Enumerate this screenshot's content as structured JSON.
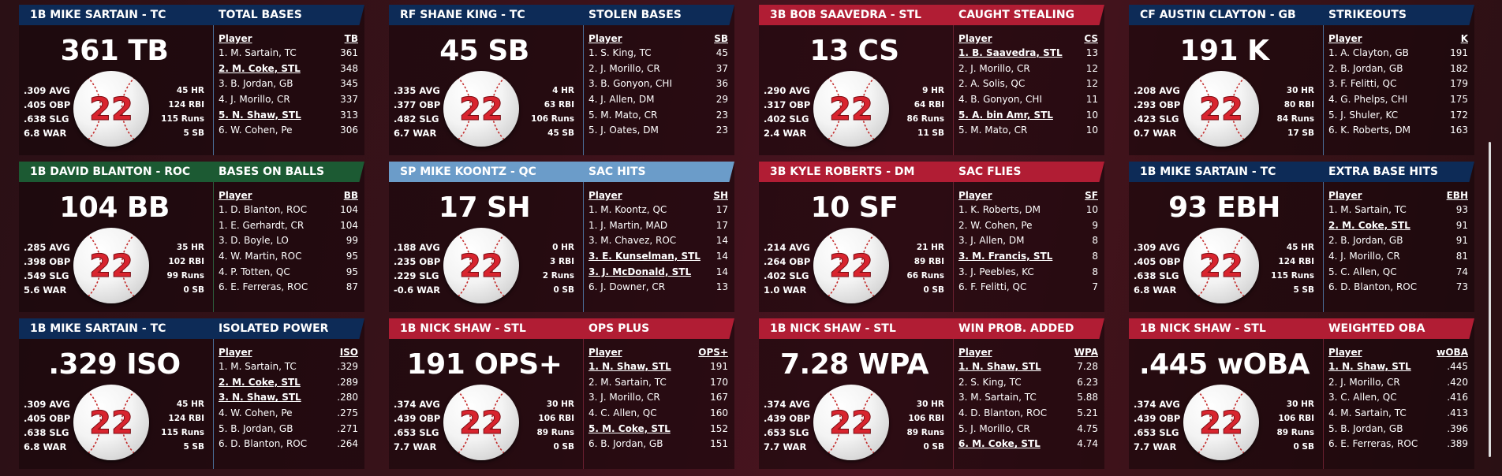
{
  "colors": {
    "navy": "#0d2b57",
    "red": "#b11d34",
    "green": "#1c5a33",
    "lightblue": "#6b9cc9"
  },
  "ball_icon": "baseball-icon",
  "cards": [
    {
      "player": "1B MIKE SARTAIN - TC",
      "stat": "TOTAL BASES",
      "big": "361 TB",
      "color": "navy",
      "left": [
        "309 AVG",
        ".405 OBP",
        ".638 SLG",
        "6.8 WAR"
      ],
      "right": [
        "45 HR",
        "124 RBI",
        "115 Runs",
        "5 SB"
      ],
      "number": "22",
      "col_player": "Player",
      "col_stat": "TB",
      "rows": [
        {
          "n": "1. M. Sartain, TC",
          "v": "361",
          "hl": false
        },
        {
          "n": "2. M. Coke, STL",
          "v": "348",
          "hl": true
        },
        {
          "n": "3. B. Jordan, GB",
          "v": "345",
          "hl": false
        },
        {
          "n": "4. J. Morillo, CR",
          "v": "337",
          "hl": false
        },
        {
          "n": "5. N. Shaw, STL",
          "v": "313",
          "hl": true
        },
        {
          "n": "6. W. Cohen, Pe",
          "v": "306",
          "hl": false
        }
      ]
    },
    {
      "player": "RF SHANE KING - TC",
      "stat": "STOLEN BASES",
      "big": "45 SB",
      "color": "navy",
      "left": [
        ".335 AVG",
        ".377 OBP",
        ".482 SLG",
        "6.7 WAR"
      ],
      "right": [
        "4 HR",
        "63 RBI",
        "106 Runs",
        "45 SB"
      ],
      "number": "22",
      "col_player": "Player",
      "col_stat": "SB",
      "rows": [
        {
          "n": "1. S. King, TC",
          "v": "45",
          "hl": false
        },
        {
          "n": "2. J. Morillo, CR",
          "v": "37",
          "hl": false
        },
        {
          "n": "3. B. Gonyon, CHI",
          "v": "36",
          "hl": false
        },
        {
          "n": "4. J. Allen, DM",
          "v": "29",
          "hl": false
        },
        {
          "n": "5. M. Mato, CR",
          "v": "23",
          "hl": false
        },
        {
          "n": "5. J. Oates, DM",
          "v": "23",
          "hl": false
        }
      ]
    },
    {
      "player": "3B BOB SAAVEDRA - STL",
      "stat": "CAUGHT STEALING",
      "big": "13 CS",
      "color": "red",
      "left": [
        ".290 AVG",
        ".317 OBP",
        ".402 SLG",
        "2.4 WAR"
      ],
      "right": [
        "9 HR",
        "64 RBI",
        "86 Runs",
        "11 SB"
      ],
      "number": "22",
      "col_player": "Player",
      "col_stat": "CS",
      "rows": [
        {
          "n": "1. B. Saavedra, STL",
          "v": "13",
          "hl": true
        },
        {
          "n": "2. J. Morillo, CR",
          "v": "12",
          "hl": false
        },
        {
          "n": "2. A. Solis, QC",
          "v": "12",
          "hl": false
        },
        {
          "n": "4. B. Gonyon, CHI",
          "v": "11",
          "hl": false
        },
        {
          "n": "5. A. bin Amr, STL",
          "v": "10",
          "hl": true
        },
        {
          "n": "5. M. Mato, CR",
          "v": "10",
          "hl": false
        }
      ]
    },
    {
      "player": "CF AUSTIN CLAYTON - GB",
      "stat": "STRIKEOUTS",
      "big": "191 K",
      "color": "navy",
      "left": [
        ".208 AVG",
        ".293 OBP",
        ".423 SLG",
        "0.7 WAR"
      ],
      "right": [
        "30 HR",
        "80 RBI",
        "84 Runs",
        "17 SB"
      ],
      "number": "22",
      "col_player": "Player",
      "col_stat": "K",
      "rows": [
        {
          "n": "1. A. Clayton, GB",
          "v": "191",
          "hl": false
        },
        {
          "n": "2. B. Jordan, GB",
          "v": "182",
          "hl": false
        },
        {
          "n": "3. F. Felitti, QC",
          "v": "179",
          "hl": false
        },
        {
          "n": "4. G. Phelps, CHI",
          "v": "175",
          "hl": false
        },
        {
          "n": "5. J. Shuler, KC",
          "v": "172",
          "hl": false
        },
        {
          "n": "6. K. Roberts, DM",
          "v": "163",
          "hl": false
        }
      ]
    },
    {
      "player": "1B DAVID BLANTON - ROC",
      "stat": "BASES ON BALLS",
      "big": "104 BB",
      "color": "green",
      "left": [
        ".285 AVG",
        ".398 OBP",
        ".549 SLG",
        "5.6 WAR"
      ],
      "right": [
        "35 HR",
        "102 RBI",
        "99 Runs",
        "0 SB"
      ],
      "number": "22",
      "col_player": "Player",
      "col_stat": "BB",
      "rows": [
        {
          "n": "1. D. Blanton, ROC",
          "v": "104",
          "hl": false
        },
        {
          "n": "1. E. Gerhardt, CR",
          "v": "104",
          "hl": false
        },
        {
          "n": "3. D. Boyle, LO",
          "v": "99",
          "hl": false
        },
        {
          "n": "4. W. Martin, ROC",
          "v": "95",
          "hl": false
        },
        {
          "n": "4. P. Totten, QC",
          "v": "95",
          "hl": false
        },
        {
          "n": "6. E. Ferreras, ROC",
          "v": "87",
          "hl": false
        }
      ]
    },
    {
      "player": "SP MIKE KOONTZ - QC",
      "stat": "SAC HITS",
      "big": "17 SH",
      "color": "lightblue",
      "left": [
        ".188 AVG",
        ".235 OBP",
        ".229 SLG",
        "-0.6 WAR"
      ],
      "right": [
        "0 HR",
        "3 RBI",
        "2 Runs",
        "0 SB"
      ],
      "number": "22",
      "col_player": "Player",
      "col_stat": "SH",
      "rows": [
        {
          "n": "1. M. Koontz, QC",
          "v": "17",
          "hl": false
        },
        {
          "n": "1. J. Martin, MAD",
          "v": "17",
          "hl": false
        },
        {
          "n": "3. M. Chavez, ROC",
          "v": "14",
          "hl": false
        },
        {
          "n": "3. E. Kunselman, STL",
          "v": "14",
          "hl": true
        },
        {
          "n": "3. J. McDonald, STL",
          "v": "14",
          "hl": true
        },
        {
          "n": "6. J. Downer, CR",
          "v": "13",
          "hl": false
        }
      ]
    },
    {
      "player": "3B KYLE ROBERTS - DM",
      "stat": "SAC FLIES",
      "big": "10 SF",
      "color": "red",
      "left": [
        ".214 AVG",
        ".264 OBP",
        ".402 SLG",
        "1.0 WAR"
      ],
      "right": [
        "21 HR",
        "89 RBI",
        "66 Runs",
        "0 SB"
      ],
      "number": "22",
      "col_player": "Player",
      "col_stat": "SF",
      "rows": [
        {
          "n": "1. K. Roberts, DM",
          "v": "10",
          "hl": false
        },
        {
          "n": "2. W. Cohen, Pe",
          "v": "9",
          "hl": false
        },
        {
          "n": "3. J. Allen, DM",
          "v": "8",
          "hl": false
        },
        {
          "n": "3. M. Francis, STL",
          "v": "8",
          "hl": true
        },
        {
          "n": "3. J. Peebles, KC",
          "v": "8",
          "hl": false
        },
        {
          "n": "6. F. Felitti, QC",
          "v": "7",
          "hl": false
        }
      ]
    },
    {
      "player": "1B MIKE SARTAIN - TC",
      "stat": "EXTRA BASE HITS",
      "big": "93 EBH",
      "color": "navy",
      "left": [
        ".309 AVG",
        ".405 OBP",
        ".638 SLG",
        "6.8 WAR"
      ],
      "right": [
        "45 HR",
        "124 RBI",
        "115 Runs",
        "5 SB"
      ],
      "number": "22",
      "col_player": "Player",
      "col_stat": "EBH",
      "rows": [
        {
          "n": "1. M. Sartain, TC",
          "v": "93",
          "hl": false
        },
        {
          "n": "2. M. Coke, STL",
          "v": "91",
          "hl": true
        },
        {
          "n": "2. B. Jordan, GB",
          "v": "91",
          "hl": false
        },
        {
          "n": "4. J. Morillo, CR",
          "v": "81",
          "hl": false
        },
        {
          "n": "5. C. Allen, QC",
          "v": "74",
          "hl": false
        },
        {
          "n": "6. D. Blanton, ROC",
          "v": "73",
          "hl": false
        }
      ]
    },
    {
      "player": "1B MIKE SARTAIN - TC",
      "stat": "ISOLATED POWER",
      "big": ".329 ISO",
      "color": "navy",
      "left": [
        ".309 AVG",
        ".405 OBP",
        ".638 SLG",
        "6.8 WAR"
      ],
      "right": [
        "45 HR",
        "124 RBI",
        "115 Runs",
        "5 SB"
      ],
      "number": "22",
      "col_player": "Player",
      "col_stat": "ISO",
      "rows": [
        {
          "n": "1. M. Sartain, TC",
          "v": ".329",
          "hl": false
        },
        {
          "n": "2. M. Coke, STL",
          "v": ".289",
          "hl": true
        },
        {
          "n": "3. N. Shaw, STL",
          "v": ".280",
          "hl": true
        },
        {
          "n": "4. W. Cohen, Pe",
          "v": ".275",
          "hl": false
        },
        {
          "n": "5. B. Jordan, GB",
          "v": ".271",
          "hl": false
        },
        {
          "n": "6. D. Blanton, ROC",
          "v": ".264",
          "hl": false
        }
      ]
    },
    {
      "player": "1B NICK SHAW - STL",
      "stat": "OPS PLUS",
      "big": "191 OPS+",
      "color": "red",
      "left": [
        ".374 AVG",
        ".439 OBP",
        ".653 SLG",
        "7.7 WAR"
      ],
      "right": [
        "30 HR",
        "106 RBI",
        "89 Runs",
        "0 SB"
      ],
      "number": "22",
      "col_player": "Player",
      "col_stat": "OPS+",
      "rows": [
        {
          "n": "1. N. Shaw, STL",
          "v": "191",
          "hl": true
        },
        {
          "n": "2. M. Sartain, TC",
          "v": "170",
          "hl": false
        },
        {
          "n": "3. J. Morillo, CR",
          "v": "167",
          "hl": false
        },
        {
          "n": "4. C. Allen, QC",
          "v": "160",
          "hl": false
        },
        {
          "n": "5. M. Coke, STL",
          "v": "152",
          "hl": true
        },
        {
          "n": "6. B. Jordan, GB",
          "v": "151",
          "hl": false
        }
      ]
    },
    {
      "player": "1B NICK SHAW - STL",
      "stat": "WIN PROB. ADDED",
      "big": "7.28 WPA",
      "color": "red",
      "left": [
        ".374 AVG",
        ".439 OBP",
        ".653 SLG",
        "7.7 WAR"
      ],
      "right": [
        "30 HR",
        "106 RBI",
        "89 Runs",
        "0 SB"
      ],
      "number": "22",
      "col_player": "Player",
      "col_stat": "WPA",
      "rows": [
        {
          "n": "1. N. Shaw, STL",
          "v": "7.28",
          "hl": true
        },
        {
          "n": "2. S. King, TC",
          "v": "6.23",
          "hl": false
        },
        {
          "n": "3. M. Sartain, TC",
          "v": "5.88",
          "hl": false
        },
        {
          "n": "4. D. Blanton, ROC",
          "v": "5.21",
          "hl": false
        },
        {
          "n": "5. J. Morillo, CR",
          "v": "4.75",
          "hl": false
        },
        {
          "n": "6. M. Coke, STL",
          "v": "4.74",
          "hl": true
        }
      ]
    },
    {
      "player": "1B NICK SHAW - STL",
      "stat": "WEIGHTED OBA",
      "big": ".445 wOBA",
      "color": "red",
      "left": [
        ".374 AVG",
        ".439 OBP",
        ".653 SLG",
        "7.7 WAR"
      ],
      "right": [
        "30 HR",
        "106 RBI",
        "89 Runs",
        "0 SB"
      ],
      "number": "22",
      "col_player": "Player",
      "col_stat": "wOBA",
      "rows": [
        {
          "n": "1. N. Shaw, STL",
          "v": ".445",
          "hl": true
        },
        {
          "n": "2. J. Morillo, CR",
          "v": ".420",
          "hl": false
        },
        {
          "n": "3. C. Allen, QC",
          "v": ".416",
          "hl": false
        },
        {
          "n": "4. M. Sartain, TC",
          "v": ".413",
          "hl": false
        },
        {
          "n": "5. B. Jordan, GB",
          "v": ".396",
          "hl": false
        },
        {
          "n": "6. E. Ferreras, ROC",
          "v": ".389",
          "hl": false
        }
      ]
    }
  ]
}
